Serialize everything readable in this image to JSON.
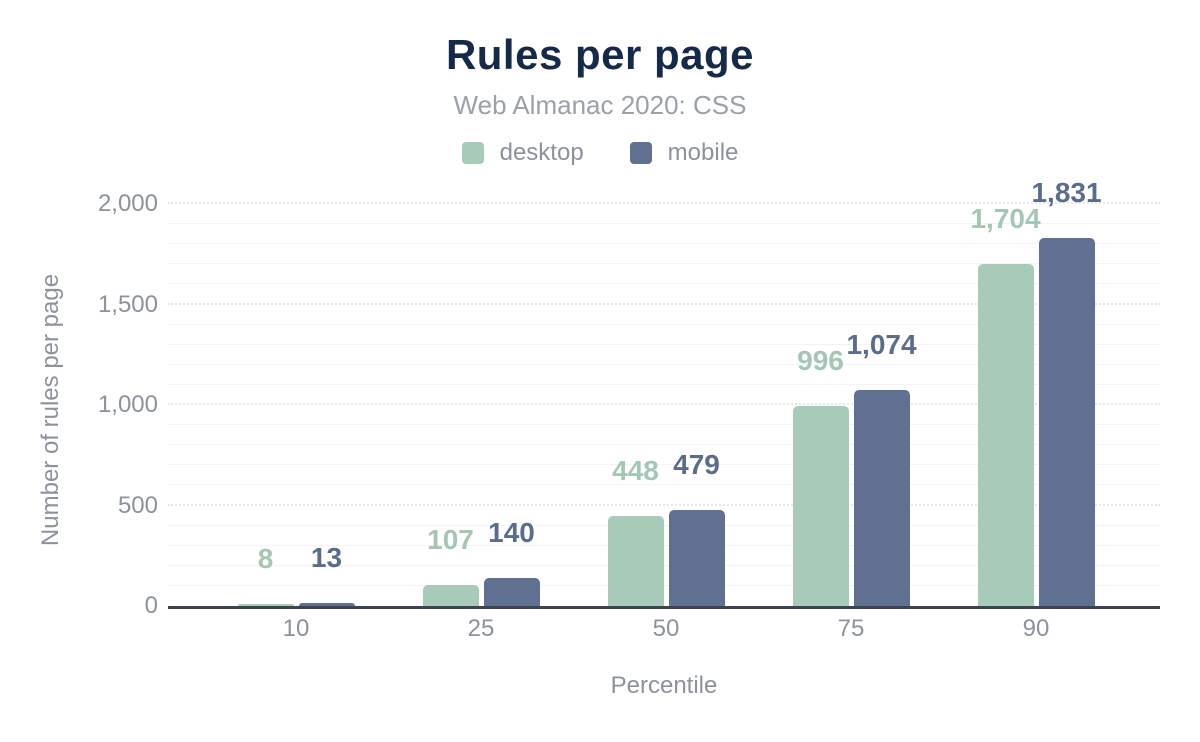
{
  "colors": {
    "title": "#15294b",
    "subtitle": "#99a1ab",
    "muted_text": "#8c939d",
    "axis_line": "#3d444d",
    "grid_major": "#e6e8ea",
    "grid_minor": "#f2f4f5",
    "desktop": "#a8cab8",
    "mobile": "#5f7090",
    "desktop_label": "#a4c7b4",
    "mobile_label": "#5a6d8d"
  },
  "chart_data": {
    "type": "bar",
    "title": "Rules per page",
    "subtitle": "Web Almanac 2020: CSS",
    "xlabel": "Percentile",
    "ylabel": "Number of rules per page",
    "categories": [
      "10",
      "25",
      "50",
      "75",
      "90"
    ],
    "series": [
      {
        "name": "desktop",
        "color": "#a8cab8",
        "values": [
          8,
          107,
          448,
          996,
          1704
        ],
        "labels": [
          "8",
          "107",
          "448",
          "996",
          "1,704"
        ]
      },
      {
        "name": "mobile",
        "color": "#5f7090",
        "values": [
          13,
          140,
          479,
          1074,
          1831
        ],
        "labels": [
          "13",
          "140",
          "479",
          "1,074",
          "1,831"
        ]
      }
    ],
    "ylim": [
      0,
      2000
    ],
    "yticks": [
      {
        "value": 0,
        "label": "0"
      },
      {
        "value": 500,
        "label": "500"
      },
      {
        "value": 1000,
        "label": "1,000"
      },
      {
        "value": 1500,
        "label": "1,500"
      },
      {
        "value": 2000,
        "label": "2,000"
      }
    ],
    "minor_grid_step": 100,
    "grid": "horizontal-only",
    "legend_position": "top"
  }
}
